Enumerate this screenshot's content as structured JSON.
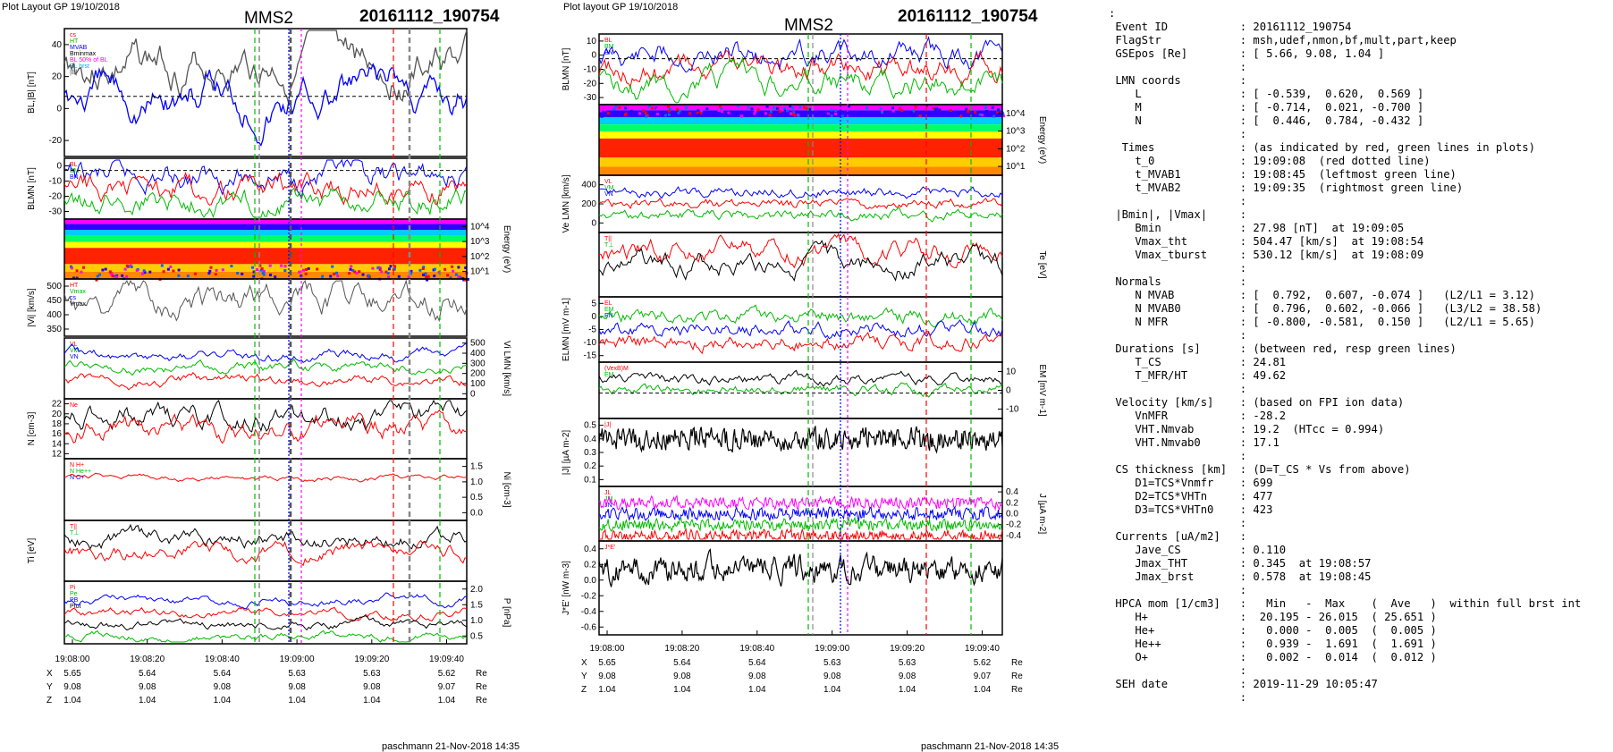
{
  "left": {
    "hdr": "Plot Layout GP 19/10/2018",
    "sc": "MMS2",
    "event": "20161112_190754",
    "footer": "paschmann 21-Nov-2018 14:35"
  },
  "mid": {
    "hdr": "Plot layout GP 19/10/2018",
    "sc": "MMS2",
    "event": "20161112_190754",
    "footer": "paschmann 21-Nov-2018 14:35"
  },
  "colors": {
    "event": "#9b1b1b",
    "red": "#ff0000",
    "green": "#00bb00",
    "blue": "#0000ff",
    "magenta": "#ff00ff",
    "cyan": "#00aadd",
    "gray": "#555555"
  },
  "chart_data": [
    {
      "type": "line",
      "figure": "left",
      "x_ticks": [
        "19:08:00",
        "19:08:20",
        "19:08:40",
        "19:09:00",
        "19:09:20",
        "19:09:40"
      ],
      "position_rows": {
        "labels": [
          "X",
          "Y",
          "Z"
        ],
        "unit": "Re",
        "values": [
          [
            "5.65",
            "5.64",
            "5.64",
            "5.63",
            "5.63",
            "5.62"
          ],
          [
            "9.08",
            "9.08",
            "9.08",
            "9.08",
            "9.08",
            "9.07"
          ],
          [
            "1.04",
            "1.04",
            "1.04",
            "1.04",
            "1.04",
            "1.04"
          ]
        ]
      },
      "panels": [
        {
          "ylabel": "BL,|B| [nT]",
          "side": "left",
          "ticks": [
            "40",
            "20",
            "0",
            "-20"
          ],
          "legend": [
            "cs",
            "HT",
            "MVAB",
            "Bminmax",
            "BL 50% of BL",
            "BL brst",
            "|B|"
          ]
        },
        {
          "ylabel": "BLMN [nT]",
          "side": "left",
          "ticks": [
            "0",
            "-10",
            "-20",
            "-30"
          ],
          "legend": [
            "BL",
            "BM",
            "BN"
          ]
        },
        {
          "ylabel": "Energy (eV)",
          "side": "right",
          "ticks": [
            "10^4",
            "10^3",
            "10^2",
            "10^1"
          ],
          "legend": []
        },
        {
          "ylabel": "|Vi| [km/s]",
          "side": "left",
          "ticks": [
            "500",
            "450",
            "400",
            "350"
          ],
          "legend": [
            "HT",
            "Vmax",
            "cs",
            "Vmax"
          ]
        },
        {
          "ylabel": "Vi LMN [km/s]",
          "side": "right",
          "ticks": [
            "500",
            "400",
            "300",
            "200",
            "100",
            "0"
          ],
          "legend": [
            "VL",
            "VM",
            "VN"
          ]
        },
        {
          "ylabel": "N [cm-3]",
          "side": "left",
          "ticks": [
            "22",
            "20",
            "18",
            "16",
            "14",
            "12"
          ],
          "legend": [
            "Ne"
          ]
        },
        {
          "ylabel": "Ni [cm-3]",
          "side": "right",
          "ticks": [
            "1.5",
            "1.0",
            "0.5",
            "0.0"
          ],
          "legend": [
            "N H+",
            "N He++",
            "N O+"
          ]
        },
        {
          "ylabel": "Ti [eV]",
          "side": "left",
          "ticks": [],
          "legend": [
            "T||",
            "T⊥"
          ]
        },
        {
          "ylabel": "P [nPa]",
          "side": "right",
          "ticks": [
            "2.0",
            "1.5",
            "1.0",
            "0.5"
          ],
          "legend": [
            "Pi",
            "Pe",
            "PB",
            "Ptot"
          ]
        }
      ]
    },
    {
      "type": "line",
      "figure": "middle",
      "x_ticks": [
        "19:08:00",
        "19:08:20",
        "19:08:40",
        "19:09:00",
        "19:09:20",
        "19:09:40"
      ],
      "position_rows": {
        "labels": [
          "X",
          "Y",
          "Z"
        ],
        "unit": "Re",
        "values": [
          [
            "5.65",
            "5.64",
            "5.64",
            "5.63",
            "5.63",
            "5.62"
          ],
          [
            "9.08",
            "9.08",
            "9.08",
            "9.08",
            "9.08",
            "9.07"
          ],
          [
            "1.04",
            "1.04",
            "1.04",
            "1.04",
            "1.04",
            "1.04"
          ]
        ]
      },
      "panels": [
        {
          "ylabel": "BLMN [nT]",
          "side": "left",
          "ticks": [
            "10",
            "0",
            "-10",
            "-20",
            "-30"
          ],
          "legend": [
            "BL",
            "BM",
            "BN"
          ]
        },
        {
          "ylabel": "Energy (eV)",
          "side": "right",
          "ticks": [
            "10^4",
            "10^3",
            "10^2",
            "10^1"
          ],
          "legend": []
        },
        {
          "ylabel": "Ve LMN [km/s]",
          "side": "left",
          "ticks": [
            "400",
            "200",
            "0"
          ],
          "legend": [
            "VL",
            "VM",
            "VN"
          ]
        },
        {
          "ylabel": "Te [eV]",
          "side": "right",
          "ticks": [],
          "legend": [
            "T||",
            "T⊥"
          ]
        },
        {
          "ylabel": "ELMN [mV m-1]",
          "side": "left",
          "ticks": [
            "5",
            "0",
            "-5",
            "-10",
            "-15"
          ],
          "legend": [
            "EL",
            "EM",
            "EN"
          ]
        },
        {
          "ylabel": "EM [mV m-1]",
          "side": "right",
          "ticks": [
            "10",
            "0",
            "-10"
          ],
          "legend": [
            "(VexB)M",
            "EM"
          ]
        },
        {
          "ylabel": "|J| [µA m-2]",
          "side": "left",
          "ticks": [
            "0.5",
            "0.4",
            "0.3",
            "0.2",
            "0.1"
          ],
          "legend": [
            "|J|"
          ]
        },
        {
          "ylabel": "J [µA m-2]",
          "side": "right",
          "ticks": [
            "0.4",
            "0.2",
            "0.0",
            "-0.2",
            "-0.4"
          ],
          "legend": [
            "JL",
            "JM",
            "JN"
          ]
        },
        {
          "ylabel": "J*E' [nW m-3]",
          "side": "left",
          "ticks": [
            "0.4",
            "0.2",
            "0.0",
            "-0.2",
            "-0.4",
            "-0.6"
          ],
          "legend": [
            "J*E'"
          ]
        }
      ]
    }
  ],
  "info": {
    "colon": ":",
    "rows": [
      {
        "k": "Event ID",
        "v": "20161112_190754"
      },
      {
        "k": "FlagStr",
        "v": "msh,udef,nmon,bf,mult,part,keep"
      },
      {
        "k": "GSEpos [Re]",
        "v": "[ 5.66, 9.08, 1.04 ]"
      },
      {
        "k": "",
        "v": ""
      },
      {
        "k": "LMN coords",
        "v": ""
      },
      {
        "k": "   L",
        "v": "[ -0.539,  0.620,  0.569 ]"
      },
      {
        "k": "   M",
        "v": "[ -0.714,  0.021, -0.700 ]"
      },
      {
        "k": "   N",
        "v": "[  0.446,  0.784, -0.432 ]"
      },
      {
        "k": "",
        "v": ""
      },
      {
        "k": " Times",
        "v": "(as indicated by red, green lines in plots)"
      },
      {
        "k": "   t_0",
        "v": "19:09:08  (red dotted line)"
      },
      {
        "k": "   t_MVAB1",
        "v": "19:08:45  (leftmost green line)"
      },
      {
        "k": "   t_MVAB2",
        "v": "19:09:35  (rightmost green line)"
      },
      {
        "k": "",
        "v": ""
      },
      {
        "k": "|Bmin|, |Vmax|",
        "v": ""
      },
      {
        "k": "   Bmin",
        "v": "27.98 [nT]  at 19:09:05"
      },
      {
        "k": "   Vmax_tht",
        "v": "504.47 [km/s]  at 19:08:54"
      },
      {
        "k": "   Vmax_tburst",
        "v": "530.12 [km/s]  at 19:08:09"
      },
      {
        "k": "",
        "v": ""
      },
      {
        "k": "Normals",
        "v": ""
      },
      {
        "k": "   N MVAB",
        "v": "[  0.792,  0.607, -0.074 ]   (L2/L1 = 3.12)"
      },
      {
        "k": "   N MVAB0",
        "v": "[  0.796,  0.602, -0.066 ]   (L3/L2 = 38.58)"
      },
      {
        "k": "   N MFR",
        "v": "[ -0.800, -0.581,  0.150 ]   (L2/L1 = 5.65)"
      },
      {
        "k": "",
        "v": ""
      },
      {
        "k": "Durations [s]",
        "v": "(between red, resp green lines)"
      },
      {
        "k": "   T_CS",
        "v": "24.81"
      },
      {
        "k": "   T_MFR/HT",
        "v": "49.62"
      },
      {
        "k": "",
        "v": ""
      },
      {
        "k": "Velocity [km/s]",
        "v": "(based on FPI ion data)"
      },
      {
        "k": "   VnMFR",
        "v": "-28.2"
      },
      {
        "k": "   VHT.Nmvab",
        "v": "19.2  (HTcc = 0.994)"
      },
      {
        "k": "   VHT.Nmvab0",
        "v": "17.1"
      },
      {
        "k": "",
        "v": ""
      },
      {
        "k": "CS thickness [km]",
        "v": "(D=T_CS * Vs from above)"
      },
      {
        "k": "   D1=TCS*Vnmfr",
        "v": "699"
      },
      {
        "k": "   D2=TCS*VHTn",
        "v": "477"
      },
      {
        "k": "   D3=TCS*VHTn0",
        "v": "423"
      },
      {
        "k": "",
        "v": ""
      },
      {
        "k": "Currents [uA/m2]",
        "v": ""
      },
      {
        "k": "   Jave_CS",
        "v": "0.110"
      },
      {
        "k": "   Jmax_THT",
        "v": "0.345  at 19:08:57"
      },
      {
        "k": "   Jmax_brst",
        "v": "0.578  at 19:08:45"
      },
      {
        "k": "",
        "v": ""
      },
      {
        "k": "HPCA mom [1/cm3]",
        "v": "  Min   -  Max    (  Ave   )  within full brst int"
      },
      {
        "k": "   H+",
        "v": " 20.195 - 26.015  ( 25.651 )"
      },
      {
        "k": "   He+",
        "v": "  0.000 -  0.005  (  0.005 )"
      },
      {
        "k": "   He++",
        "v": "  0.939 -  1.691  (  1.691 )"
      },
      {
        "k": "   O+",
        "v": "  0.002 -  0.014  (  0.012 )"
      },
      {
        "k": "",
        "v": ""
      },
      {
        "k": "SEH date",
        "v": "2019-11-29 10:05:47"
      },
      {
        "k": "",
        "v": ""
      }
    ]
  }
}
